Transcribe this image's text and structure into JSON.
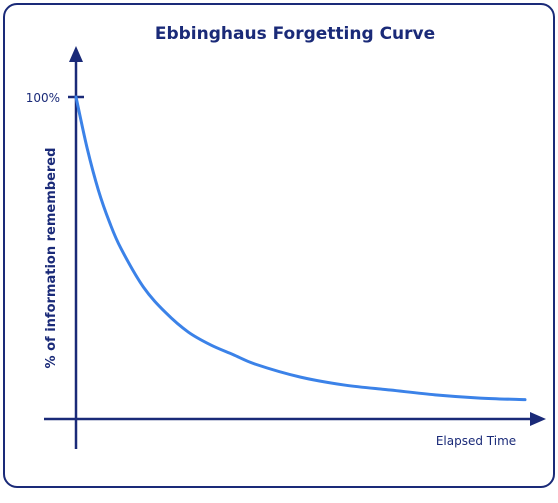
{
  "chart_data": {
    "type": "line",
    "title": "Ebbinghaus Forgetting Curve",
    "xlabel": "Elapsed Time",
    "ylabel": "% of information remembered",
    "y_ticks": [
      {
        "value": 100,
        "label": "100%"
      }
    ],
    "xlim": [
      0,
      10
    ],
    "ylim": [
      0,
      100
    ],
    "grid": false,
    "series": [
      {
        "color": "#3b82e8",
        "x": [
          0,
          0.25,
          0.5,
          0.75,
          1,
          1.5,
          2,
          2.5,
          3,
          3.5,
          4,
          5,
          6,
          7,
          8,
          9,
          10
        ],
        "y": [
          100,
          84,
          71,
          61,
          53,
          41,
          33,
          27,
          23,
          20,
          17,
          13,
          10.5,
          9,
          7.5,
          6.5,
          6
        ]
      }
    ]
  },
  "colors": {
    "axis": "#1a2a78",
    "curve": "#3b82e8",
    "border": "#1a2a78"
  }
}
